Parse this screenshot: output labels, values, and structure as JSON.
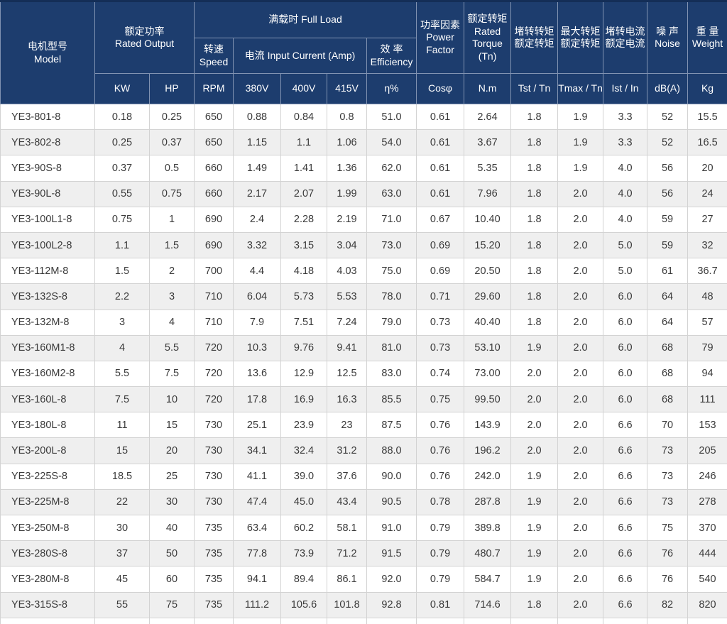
{
  "colors": {
    "header_bg": "#1d3d6e",
    "header_border": "#8193b2",
    "header_text": "#ffffff",
    "body_border": "#d3d3d3",
    "stripe": "#efefef",
    "body_text": "#3a3a3a",
    "outer_top_border": "#142e57"
  },
  "table": {
    "header": {
      "model": {
        "zh": "电机型号",
        "en": "Model"
      },
      "rated_output": {
        "zh": "额定功率",
        "en": "Rated Output"
      },
      "full_load": {
        "label": "满载时 Full Load"
      },
      "speed": {
        "zh": "转速",
        "en": "Speed"
      },
      "current": {
        "label": "电流 Input Current (Amp)"
      },
      "efficiency": {
        "zh": "效 率",
        "en": "Efficiency"
      },
      "power_factor": {
        "zh": "功率因素",
        "en1": "Power",
        "en2": "Factor"
      },
      "rated_torque": {
        "zh": "额定转矩",
        "en1": "Rated",
        "en2": "Torque",
        "en3": "(Tn)"
      },
      "tst_ratio": {
        "line1": "堵转转矩",
        "line2": "额定转矩"
      },
      "tmax_ratio": {
        "line1": "最大转矩",
        "line2": "额定转矩"
      },
      "ist_ratio": {
        "line1": "堵转电流",
        "line2": "额定电流"
      },
      "noise": {
        "zh": "噪 声",
        "en": "Noise"
      },
      "weight": {
        "zh": "重 量",
        "en": "Weight"
      },
      "units": {
        "kw": "KW",
        "hp": "HP",
        "rpm": "RPM",
        "v380": "380V",
        "v400": "400V",
        "v415": "415V",
        "eta": "η%",
        "cos": "Cosφ",
        "nm": "N.m",
        "tst": "Tst / Tn",
        "tmax": "Tmax / Tn",
        "ist": "Ist / In",
        "db": "dB(A)",
        "kg": "Kg"
      }
    },
    "rows": [
      [
        "YE3-801-8",
        "0.18",
        "0.25",
        "650",
        "0.88",
        "0.84",
        "0.8",
        "51.0",
        "0.61",
        "2.64",
        "1.8",
        "1.9",
        "3.3",
        "52",
        "15.5"
      ],
      [
        "YE3-802-8",
        "0.25",
        "0.37",
        "650",
        "1.15",
        "1.1",
        "1.06",
        "54.0",
        "0.61",
        "3.67",
        "1.8",
        "1.9",
        "3.3",
        "52",
        "16.5"
      ],
      [
        "YE3-90S-8",
        "0.37",
        "0.5",
        "660",
        "1.49",
        "1.41",
        "1.36",
        "62.0",
        "0.61",
        "5.35",
        "1.8",
        "1.9",
        "4.0",
        "56",
        "20"
      ],
      [
        "YE3-90L-8",
        "0.55",
        "0.75",
        "660",
        "2.17",
        "2.07",
        "1.99",
        "63.0",
        "0.61",
        "7.96",
        "1.8",
        "2.0",
        "4.0",
        "56",
        "24"
      ],
      [
        "YE3-100L1-8",
        "0.75",
        "1",
        "690",
        "2.4",
        "2.28",
        "2.19",
        "71.0",
        "0.67",
        "10.40",
        "1.8",
        "2.0",
        "4.0",
        "59",
        "27"
      ],
      [
        "YE3-100L2-8",
        "1.1",
        "1.5",
        "690",
        "3.32",
        "3.15",
        "3.04",
        "73.0",
        "0.69",
        "15.20",
        "1.8",
        "2.0",
        "5.0",
        "59",
        "32"
      ],
      [
        "YE3-112M-8",
        "1.5",
        "2",
        "700",
        "4.4",
        "4.18",
        "4.03",
        "75.0",
        "0.69",
        "20.50",
        "1.8",
        "2.0",
        "5.0",
        "61",
        "36.7"
      ],
      [
        "YE3-132S-8",
        "2.2",
        "3",
        "710",
        "6.04",
        "5.73",
        "5.53",
        "78.0",
        "0.71",
        "29.60",
        "1.8",
        "2.0",
        "6.0",
        "64",
        "48"
      ],
      [
        "YE3-132M-8",
        "3",
        "4",
        "710",
        "7.9",
        "7.51",
        "7.24",
        "79.0",
        "0.73",
        "40.40",
        "1.8",
        "2.0",
        "6.0",
        "64",
        "57"
      ],
      [
        "YE3-160M1-8",
        "4",
        "5.5",
        "720",
        "10.3",
        "9.76",
        "9.41",
        "81.0",
        "0.73",
        "53.10",
        "1.9",
        "2.0",
        "6.0",
        "68",
        "79"
      ],
      [
        "YE3-160M2-8",
        "5.5",
        "7.5",
        "720",
        "13.6",
        "12.9",
        "12.5",
        "83.0",
        "0.74",
        "73.00",
        "2.0",
        "2.0",
        "6.0",
        "68",
        "94"
      ],
      [
        "YE3-160L-8",
        "7.5",
        "10",
        "720",
        "17.8",
        "16.9",
        "16.3",
        "85.5",
        "0.75",
        "99.50",
        "2.0",
        "2.0",
        "6.0",
        "68",
        "111"
      ],
      [
        "YE3-180L-8",
        "11",
        "15",
        "730",
        "25.1",
        "23.9",
        "23",
        "87.5",
        "0.76",
        "143.9",
        "2.0",
        "2.0",
        "6.6",
        "70",
        "153"
      ],
      [
        "YE3-200L-8",
        "15",
        "20",
        "730",
        "34.1",
        "32.4",
        "31.2",
        "88.0",
        "0.76",
        "196.2",
        "2.0",
        "2.0",
        "6.6",
        "73",
        "205"
      ],
      [
        "YE3-225S-8",
        "18.5",
        "25",
        "730",
        "41.1",
        "39.0",
        "37.6",
        "90.0",
        "0.76",
        "242.0",
        "1.9",
        "2.0",
        "6.6",
        "73",
        "246"
      ],
      [
        "YE3-225M-8",
        "22",
        "30",
        "730",
        "47.4",
        "45.0",
        "43.4",
        "90.5",
        "0.78",
        "287.8",
        "1.9",
        "2.0",
        "6.6",
        "73",
        "278"
      ],
      [
        "YE3-250M-8",
        "30",
        "40",
        "735",
        "63.4",
        "60.2",
        "58.1",
        "91.0",
        "0.79",
        "389.8",
        "1.9",
        "2.0",
        "6.6",
        "75",
        "370"
      ],
      [
        "YE3-280S-8",
        "37",
        "50",
        "735",
        "77.8",
        "73.9",
        "71.2",
        "91.5",
        "0.79",
        "480.7",
        "1.9",
        "2.0",
        "6.6",
        "76",
        "444"
      ],
      [
        "YE3-280M-8",
        "45",
        "60",
        "735",
        "94.1",
        "89.4",
        "86.1",
        "92.0",
        "0.79",
        "584.7",
        "1.9",
        "2.0",
        "6.6",
        "76",
        "540"
      ],
      [
        "YE3-315S-8",
        "55",
        "75",
        "735",
        "111.2",
        "105.6",
        "101.8",
        "92.8",
        "0.81",
        "714.6",
        "1.8",
        "2.0",
        "6.6",
        "82",
        "820"
      ]
    ]
  }
}
